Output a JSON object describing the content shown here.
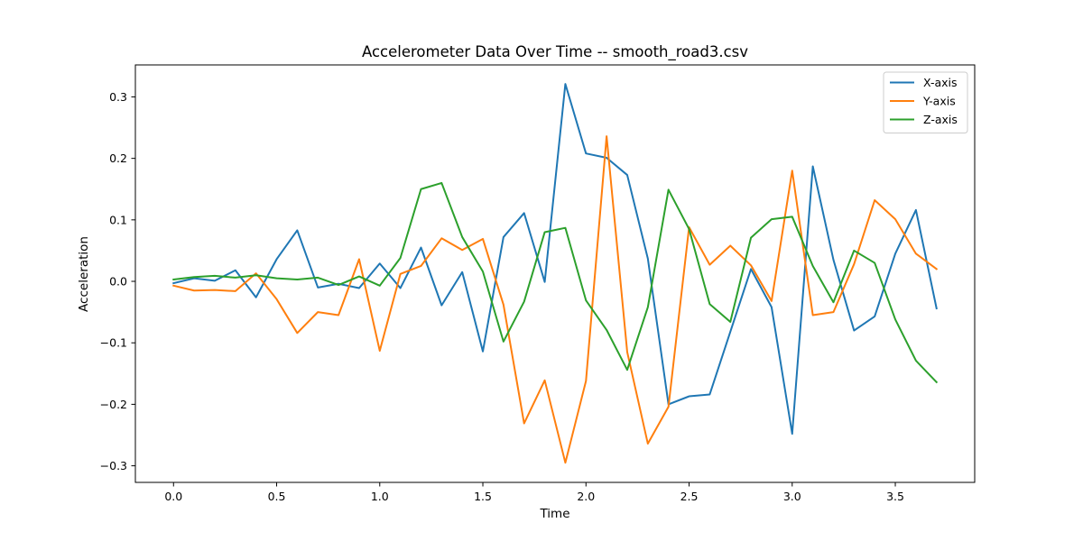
{
  "chart_data": {
    "type": "line",
    "title": "Accelerometer Data Over Time -- smooth_road3.csv",
    "xlabel": "Time",
    "ylabel": "Acceleration",
    "xlim": [
      -0.185,
      3.885
    ],
    "ylim": [
      -0.327,
      0.352
    ],
    "xticks": [
      0.0,
      0.5,
      1.0,
      1.5,
      2.0,
      2.5,
      3.0,
      3.5
    ],
    "xtick_labels": [
      "0.0",
      "0.5",
      "1.0",
      "1.5",
      "2.0",
      "2.5",
      "3.0",
      "3.5"
    ],
    "yticks": [
      -0.3,
      -0.2,
      -0.1,
      0.0,
      0.1,
      0.2,
      0.3
    ],
    "ytick_labels": [
      "−0.3",
      "−0.2",
      "−0.1",
      "0.0",
      "0.1",
      "0.2",
      "0.3"
    ],
    "grid": false,
    "legend_position": "top-right",
    "x": [
      0.0,
      0.1,
      0.2,
      0.3,
      0.4,
      0.5,
      0.6,
      0.7,
      0.8,
      0.9,
      1.0,
      1.1,
      1.2,
      1.3,
      1.4,
      1.5,
      1.6,
      1.7,
      1.8,
      1.9,
      2.0,
      2.1,
      2.2,
      2.3,
      2.4,
      2.5,
      2.6,
      2.7,
      2.8,
      2.9,
      3.0,
      3.1,
      3.2,
      3.3,
      3.4,
      3.5,
      3.6,
      3.7
    ],
    "series": [
      {
        "name": "X-axis",
        "color": "#1f77b4",
        "values": [
          -0.003,
          0.005,
          0.001,
          0.018,
          -0.026,
          0.036,
          0.083,
          -0.01,
          -0.004,
          -0.011,
          0.029,
          -0.011,
          0.055,
          -0.039,
          0.015,
          -0.114,
          0.072,
          0.111,
          -0.001,
          0.321,
          0.208,
          0.201,
          0.173,
          0.037,
          -0.2,
          -0.187,
          -0.184,
          -0.082,
          0.02,
          -0.042,
          -0.248,
          0.187,
          0.035,
          -0.08,
          -0.057,
          0.045,
          0.116,
          -0.044
        ]
      },
      {
        "name": "Y-axis",
        "color": "#ff7f0e",
        "values": [
          -0.007,
          -0.015,
          -0.014,
          -0.016,
          0.013,
          -0.029,
          -0.084,
          -0.05,
          -0.055,
          0.036,
          -0.113,
          0.012,
          0.025,
          0.07,
          0.051,
          0.069,
          -0.038,
          -0.231,
          -0.161,
          -0.295,
          -0.162,
          0.236,
          -0.115,
          -0.264,
          -0.204,
          0.088,
          0.027,
          0.058,
          0.026,
          -0.032,
          0.18,
          -0.055,
          -0.05,
          0.028,
          0.132,
          0.101,
          0.045,
          0.02
        ]
      },
      {
        "name": "Z-axis",
        "color": "#2ca02c",
        "values": [
          0.003,
          0.007,
          0.009,
          0.006,
          0.01,
          0.005,
          0.003,
          0.006,
          -0.006,
          0.008,
          -0.007,
          0.038,
          0.15,
          0.16,
          0.072,
          0.016,
          -0.098,
          -0.033,
          0.08,
          0.087,
          -0.031,
          -0.079,
          -0.144,
          -0.042,
          0.149,
          0.085,
          -0.037,
          -0.066,
          0.071,
          0.101,
          0.105,
          0.025,
          -0.034,
          0.05,
          0.03,
          -0.062,
          -0.129,
          -0.164
        ]
      }
    ]
  }
}
